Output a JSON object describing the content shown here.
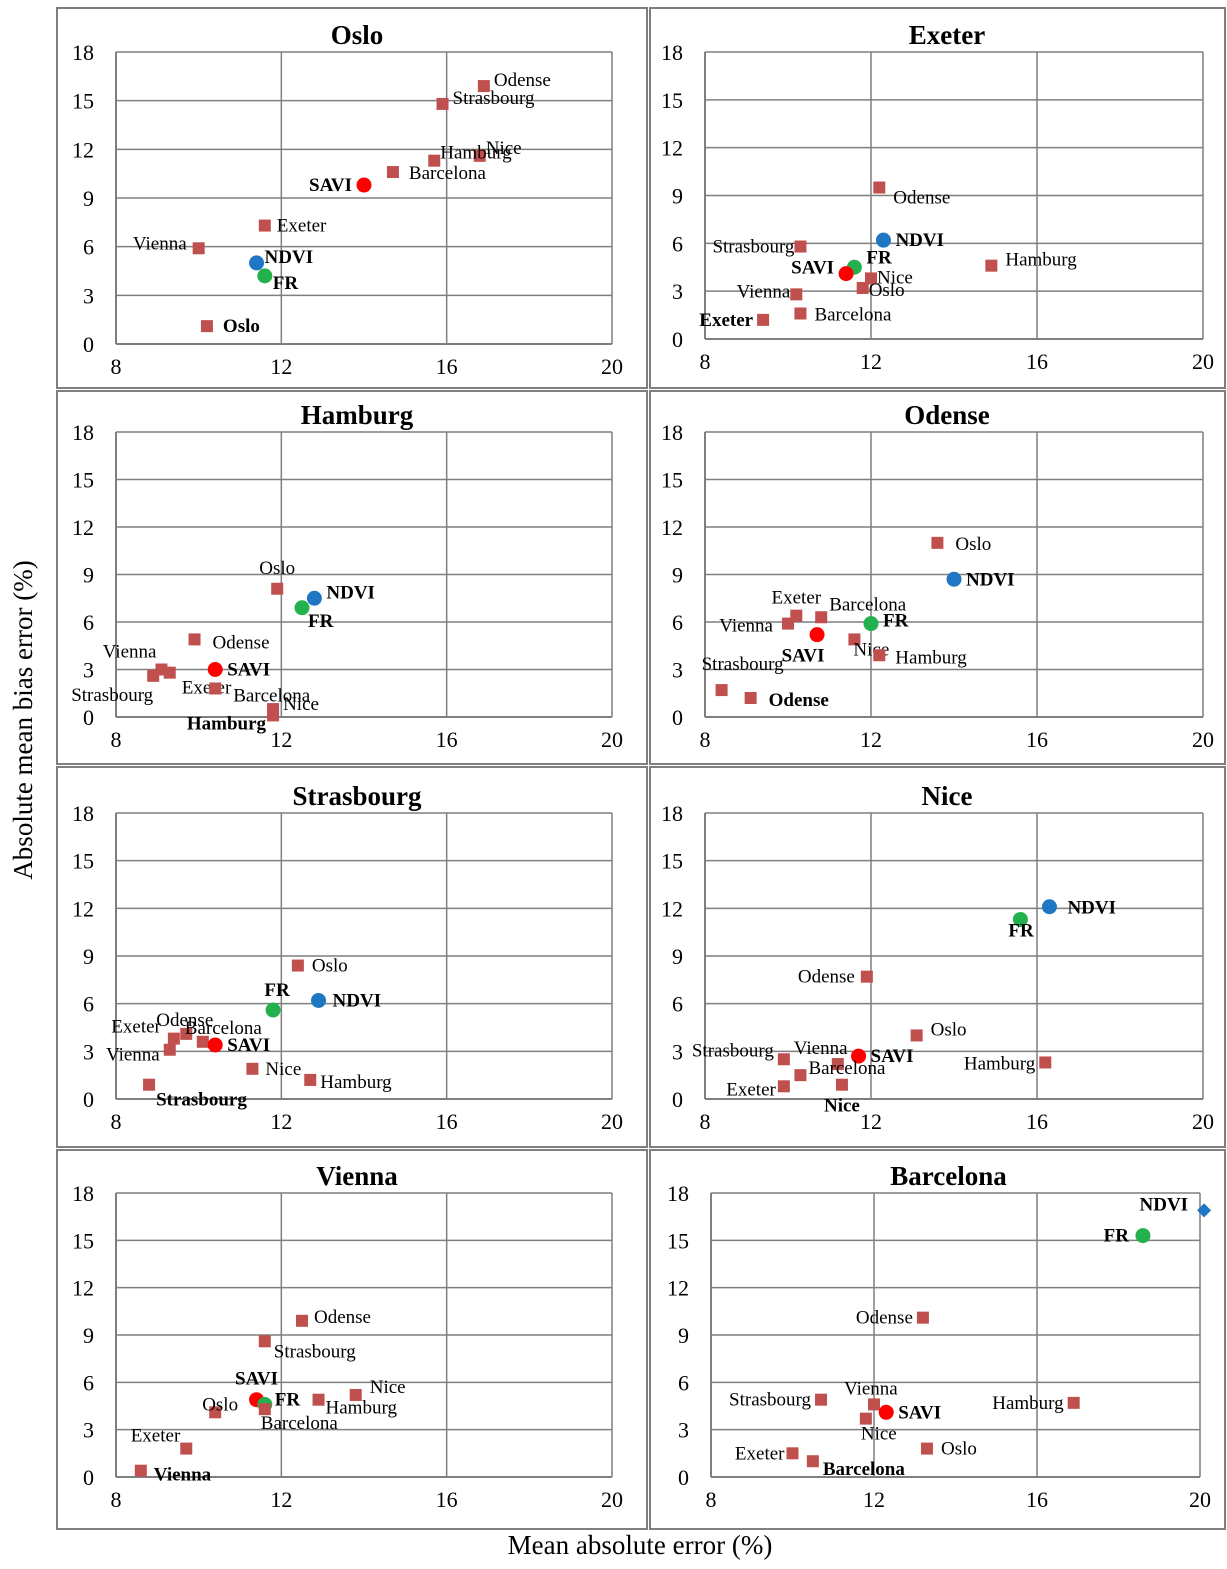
{
  "figure": {
    "xlabel": "Mean absolute error (%)",
    "ylabel": "Absolute mean bias error (%)"
  },
  "colors": {
    "cities": "#c0504d",
    "NDVI": "#1f77c4",
    "FR": "#22b14c",
    "SAVI": "#ff0000",
    "grid": "#7f7f7f",
    "frame": "#7f7f7f"
  },
  "chart_data": [
    {
      "type": "scatter",
      "title": "Oslo",
      "xlim": [
        8,
        20
      ],
      "ylim": [
        0,
        18
      ],
      "xticks": [
        "8",
        "12",
        "16",
        "20"
      ],
      "yticks": [
        "0",
        "3",
        "6",
        "9",
        "12",
        "15",
        "18"
      ],
      "grid": true,
      "legend": "none",
      "points": [
        {
          "label": "Odense",
          "x": 16.9,
          "y": 15.9,
          "marker": "square",
          "bold": false
        },
        {
          "label": "Strasbourg",
          "x": 15.9,
          "y": 14.8,
          "marker": "square",
          "bold": false
        },
        {
          "label": "Nice",
          "x": 16.8,
          "y": 11.6,
          "marker": "square",
          "bold": false
        },
        {
          "label": "Hamburg",
          "x": 15.7,
          "y": 11.3,
          "marker": "square",
          "bold": false
        },
        {
          "label": "Barcelona",
          "x": 14.7,
          "y": 10.6,
          "marker": "square",
          "bold": false
        },
        {
          "label": "SAVI",
          "x": 14.0,
          "y": 9.8,
          "marker": "circle",
          "bold": true
        },
        {
          "label": "Exeter",
          "x": 11.6,
          "y": 7.3,
          "marker": "square",
          "bold": false
        },
        {
          "label": "Vienna",
          "x": 10.0,
          "y": 5.9,
          "marker": "square",
          "bold": false
        },
        {
          "label": "NDVI",
          "x": 11.4,
          "y": 5.0,
          "marker": "circle",
          "bold": true
        },
        {
          "label": "FR",
          "x": 11.6,
          "y": 4.2,
          "marker": "circle",
          "bold": true
        },
        {
          "label": "Oslo",
          "x": 10.2,
          "y": 1.1,
          "marker": "square",
          "bold": true
        }
      ]
    },
    {
      "type": "scatter",
      "title": "Exeter",
      "xlim": [
        8,
        20
      ],
      "ylim": [
        0,
        18
      ],
      "xticks": [
        "8",
        "12",
        "16",
        "20"
      ],
      "yticks": [
        "0",
        "3",
        "6",
        "9",
        "12",
        "15",
        "18"
      ],
      "grid": true,
      "legend": "none",
      "points": [
        {
          "label": "Odense",
          "x": 12.2,
          "y": 9.5,
          "marker": "square",
          "bold": false
        },
        {
          "label": "NDVI",
          "x": 12.3,
          "y": 6.2,
          "marker": "circle",
          "bold": true
        },
        {
          "label": "Strasbourg",
          "x": 10.3,
          "y": 5.8,
          "marker": "square",
          "bold": false
        },
        {
          "label": "FR",
          "x": 11.6,
          "y": 4.5,
          "marker": "circle",
          "bold": true
        },
        {
          "label": "Hamburg",
          "x": 14.9,
          "y": 4.6,
          "marker": "square",
          "bold": false
        },
        {
          "label": "SAVI",
          "x": 11.4,
          "y": 4.1,
          "marker": "circle",
          "bold": true
        },
        {
          "label": "Nice",
          "x": 12.0,
          "y": 3.8,
          "marker": "square",
          "bold": false
        },
        {
          "label": "Oslo",
          "x": 11.8,
          "y": 3.2,
          "marker": "square",
          "bold": false
        },
        {
          "label": "Vienna",
          "x": 10.2,
          "y": 2.8,
          "marker": "square",
          "bold": false
        },
        {
          "label": "Barcelona",
          "x": 10.3,
          "y": 1.6,
          "marker": "square",
          "bold": false
        },
        {
          "label": "Exeter",
          "x": 9.4,
          "y": 1.2,
          "marker": "square",
          "bold": true
        }
      ]
    },
    {
      "type": "scatter",
      "title": "Hamburg",
      "xlim": [
        8,
        20
      ],
      "ylim": [
        0,
        18
      ],
      "xticks": [
        "8",
        "12",
        "16",
        "20"
      ],
      "yticks": [
        "0",
        "3",
        "6",
        "9",
        "12",
        "15",
        "18"
      ],
      "grid": true,
      "legend": "none",
      "points": [
        {
          "label": "Oslo",
          "x": 11.9,
          "y": 8.1,
          "marker": "square",
          "bold": false
        },
        {
          "label": "NDVI",
          "x": 12.8,
          "y": 7.5,
          "marker": "circle",
          "bold": true
        },
        {
          "label": "FR",
          "x": 12.5,
          "y": 6.9,
          "marker": "circle",
          "bold": true
        },
        {
          "label": "Odense",
          "x": 9.9,
          "y": 4.9,
          "marker": "square",
          "bold": false
        },
        {
          "label": "Vienna",
          "x": 9.1,
          "y": 3.0,
          "marker": "square",
          "bold": false
        },
        {
          "label": "SAVI",
          "x": 10.4,
          "y": 3.0,
          "marker": "circle",
          "bold": true
        },
        {
          "label": "Exeter",
          "x": 9.3,
          "y": 2.8,
          "marker": "square",
          "bold": false
        },
        {
          "label": "Strasbourg",
          "x": 8.9,
          "y": 2.6,
          "marker": "square",
          "bold": false
        },
        {
          "label": "Barcelona",
          "x": 10.4,
          "y": 1.8,
          "marker": "square",
          "bold": false
        },
        {
          "label": "Nice",
          "x": 11.8,
          "y": 0.5,
          "marker": "square",
          "bold": false
        },
        {
          "label": "Hamburg",
          "x": 11.8,
          "y": 0.1,
          "marker": "square",
          "bold": true
        }
      ]
    },
    {
      "type": "scatter",
      "title": "Odense",
      "xlim": [
        8,
        20
      ],
      "ylim": [
        0,
        18
      ],
      "xticks": [
        "8",
        "12",
        "16",
        "20"
      ],
      "yticks": [
        "0",
        "3",
        "6",
        "9",
        "12",
        "15",
        "18"
      ],
      "grid": true,
      "legend": "none",
      "points": [
        {
          "label": "Oslo",
          "x": 13.6,
          "y": 11.0,
          "marker": "square",
          "bold": false
        },
        {
          "label": "NDVI",
          "x": 14.0,
          "y": 8.7,
          "marker": "circle",
          "bold": true
        },
        {
          "label": "Exeter",
          "x": 10.2,
          "y": 6.4,
          "marker": "square",
          "bold": false
        },
        {
          "label": "Barcelona",
          "x": 10.8,
          "y": 6.3,
          "marker": "square",
          "bold": false
        },
        {
          "label": "Vienna",
          "x": 10.0,
          "y": 5.9,
          "marker": "square",
          "bold": false
        },
        {
          "label": "FR",
          "x": 12.0,
          "y": 5.9,
          "marker": "circle",
          "bold": true
        },
        {
          "label": "SAVI",
          "x": 10.7,
          "y": 5.2,
          "marker": "circle",
          "bold": true
        },
        {
          "label": "Nice",
          "x": 11.6,
          "y": 4.9,
          "marker": "square",
          "bold": false
        },
        {
          "label": "Hamburg",
          "x": 12.2,
          "y": 3.9,
          "marker": "square",
          "bold": false
        },
        {
          "label": "Strasbourg",
          "x": 8.4,
          "y": 1.7,
          "marker": "square",
          "bold": false
        },
        {
          "label": "Odense",
          "x": 9.1,
          "y": 1.2,
          "marker": "square",
          "bold": true
        }
      ]
    },
    {
      "type": "scatter",
      "title": "Strasbourg",
      "xlim": [
        8,
        20
      ],
      "ylim": [
        0,
        18
      ],
      "xticks": [
        "8",
        "12",
        "16",
        "20"
      ],
      "yticks": [
        "0",
        "3",
        "6",
        "9",
        "12",
        "15",
        "18"
      ],
      "grid": true,
      "legend": "none",
      "points": [
        {
          "label": "Oslo",
          "x": 12.4,
          "y": 8.4,
          "marker": "square",
          "bold": false
        },
        {
          "label": "NDVI",
          "x": 12.9,
          "y": 6.2,
          "marker": "circle",
          "bold": true
        },
        {
          "label": "FR",
          "x": 11.8,
          "y": 5.6,
          "marker": "circle",
          "bold": true
        },
        {
          "label": "Odense",
          "x": 9.7,
          "y": 4.1,
          "marker": "square",
          "bold": false
        },
        {
          "label": "Exeter",
          "x": 9.4,
          "y": 3.8,
          "marker": "square",
          "bold": false
        },
        {
          "label": "Barcelona",
          "x": 10.1,
          "y": 3.6,
          "marker": "square",
          "bold": false
        },
        {
          "label": "SAVI",
          "x": 10.4,
          "y": 3.4,
          "marker": "circle",
          "bold": true
        },
        {
          "label": "Vienna",
          "x": 9.3,
          "y": 3.1,
          "marker": "square",
          "bold": false
        },
        {
          "label": "Nice",
          "x": 11.3,
          "y": 1.9,
          "marker": "square",
          "bold": false
        },
        {
          "label": "Hamburg",
          "x": 12.7,
          "y": 1.2,
          "marker": "square",
          "bold": false
        },
        {
          "label": "Strasbourg",
          "x": 8.8,
          "y": 0.9,
          "marker": "square",
          "bold": true
        }
      ]
    },
    {
      "type": "scatter",
      "title": "Nice",
      "xlim": [
        8,
        20
      ],
      "ylim": [
        0,
        18
      ],
      "xticks": [
        "8",
        "12",
        "16",
        "20"
      ],
      "yticks": [
        "0",
        "3",
        "6",
        "9",
        "12",
        "15",
        "18"
      ],
      "grid": true,
      "legend": "none",
      "points": [
        {
          "label": "NDVI",
          "x": 16.3,
          "y": 12.1,
          "marker": "circle",
          "bold": true
        },
        {
          "label": "FR",
          "x": 15.6,
          "y": 11.3,
          "marker": "circle",
          "bold": true
        },
        {
          "label": "Odense",
          "x": 11.9,
          "y": 7.7,
          "marker": "square",
          "bold": false
        },
        {
          "label": "Oslo",
          "x": 13.1,
          "y": 4.0,
          "marker": "square",
          "bold": false
        },
        {
          "label": "Vienna",
          "x": 11.2,
          "y": 2.2,
          "marker": "square",
          "bold": false
        },
        {
          "label": "SAVI",
          "x": 11.7,
          "y": 2.7,
          "marker": "circle",
          "bold": true
        },
        {
          "label": "Strasbourg",
          "x": 9.9,
          "y": 2.5,
          "marker": "square",
          "bold": false
        },
        {
          "label": "Hamburg",
          "x": 16.2,
          "y": 2.3,
          "marker": "square",
          "bold": false
        },
        {
          "label": "Barcelona",
          "x": 10.3,
          "y": 1.5,
          "marker": "square",
          "bold": false
        },
        {
          "label": "Nice",
          "x": 11.3,
          "y": 0.9,
          "marker": "square",
          "bold": true
        },
        {
          "label": "Exeter",
          "x": 9.9,
          "y": 0.8,
          "marker": "square",
          "bold": false
        }
      ]
    },
    {
      "type": "scatter",
      "title": "Vienna",
      "xlim": [
        8,
        20
      ],
      "ylim": [
        0,
        18
      ],
      "xticks": [
        "8",
        "12",
        "16",
        "20"
      ],
      "yticks": [
        "0",
        "3",
        "6",
        "9",
        "12",
        "15",
        "18"
      ],
      "grid": true,
      "legend": "none",
      "points": [
        {
          "label": "Odense",
          "x": 12.5,
          "y": 9.9,
          "marker": "square",
          "bold": false
        },
        {
          "label": "Strasbourg",
          "x": 11.6,
          "y": 8.6,
          "marker": "square",
          "bold": false
        },
        {
          "label": "Nice",
          "x": 13.8,
          "y": 5.2,
          "marker": "square",
          "bold": false
        },
        {
          "label": "SAVI",
          "x": 11.4,
          "y": 4.9,
          "marker": "circle",
          "bold": true
        },
        {
          "label": "Hamburg",
          "x": 12.9,
          "y": 4.9,
          "marker": "square",
          "bold": false
        },
        {
          "label": "FR",
          "x": 11.6,
          "y": 4.6,
          "marker": "circle",
          "bold": true
        },
        {
          "label": "Barcelona",
          "x": 11.6,
          "y": 4.3,
          "marker": "square",
          "bold": false
        },
        {
          "label": "Oslo",
          "x": 10.4,
          "y": 4.1,
          "marker": "square",
          "bold": false
        },
        {
          "label": "Exeter",
          "x": 9.7,
          "y": 1.8,
          "marker": "square",
          "bold": false
        },
        {
          "label": "Vienna",
          "x": 8.6,
          "y": 0.4,
          "marker": "square",
          "bold": true
        }
      ]
    },
    {
      "type": "scatter",
      "title": "Barcelona",
      "xlim": [
        8,
        20
      ],
      "ylim": [
        0,
        18
      ],
      "xticks": [
        "8",
        "12",
        "16",
        "20"
      ],
      "yticks": [
        "0",
        "3",
        "6",
        "9",
        "12",
        "15",
        "18"
      ],
      "grid": true,
      "legend": "none",
      "points": [
        {
          "label": "NDVI",
          "x": 20.1,
          "y": 16.9,
          "marker": "diamond",
          "bold": true
        },
        {
          "label": "FR",
          "x": 18.6,
          "y": 15.3,
          "marker": "circle",
          "bold": true
        },
        {
          "label": "Odense",
          "x": 13.2,
          "y": 10.1,
          "marker": "square",
          "bold": false
        },
        {
          "label": "Strasbourg",
          "x": 10.7,
          "y": 4.9,
          "marker": "square",
          "bold": false
        },
        {
          "label": "Hamburg",
          "x": 16.9,
          "y": 4.7,
          "marker": "square",
          "bold": false
        },
        {
          "label": "Vienna",
          "x": 12.0,
          "y": 4.6,
          "marker": "square",
          "bold": false
        },
        {
          "label": "SAVI",
          "x": 12.3,
          "y": 4.1,
          "marker": "circle",
          "bold": true
        },
        {
          "label": "Nice",
          "x": 11.8,
          "y": 3.7,
          "marker": "square",
          "bold": false
        },
        {
          "label": "Oslo",
          "x": 13.3,
          "y": 1.8,
          "marker": "square",
          "bold": false
        },
        {
          "label": "Exeter",
          "x": 10.0,
          "y": 1.5,
          "marker": "square",
          "bold": false
        },
        {
          "label": "Barcelona",
          "x": 10.5,
          "y": 1.0,
          "marker": "square",
          "bold": true
        }
      ]
    }
  ]
}
